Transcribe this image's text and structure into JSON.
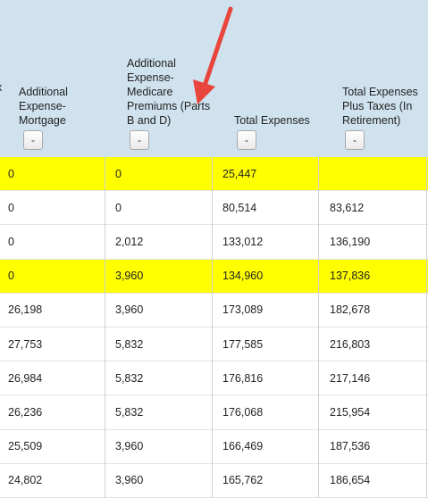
{
  "header": {
    "cut_left_label": "x",
    "columns": [
      {
        "label": "Additional Expense-Mortgage",
        "sort_label": "-"
      },
      {
        "label": "Additional Expense-Medicare Premiums (Parts B and D)",
        "sort_label": "-"
      },
      {
        "label": "Total Expenses",
        "sort_label": "-"
      },
      {
        "label": "Total Expenses Plus Taxes (In Retirement)",
        "sort_label": "-"
      }
    ]
  },
  "rows": [
    {
      "highlight": true,
      "cells": [
        "0",
        "0",
        "25,447",
        ""
      ]
    },
    {
      "highlight": false,
      "cells": [
        "0",
        "0",
        "80,514",
        "83,612"
      ]
    },
    {
      "highlight": false,
      "cells": [
        "0",
        "2,012",
        "133,012",
        "136,190"
      ]
    },
    {
      "highlight": true,
      "cells": [
        "0",
        "3,960",
        "134,960",
        "137,836"
      ]
    },
    {
      "highlight": false,
      "cells": [
        "26,198",
        "3,960",
        "173,089",
        "182,678"
      ]
    },
    {
      "highlight": false,
      "cells": [
        "27,753",
        "5,832",
        "177,585",
        "216,803"
      ]
    },
    {
      "highlight": false,
      "cells": [
        "26,984",
        "5,832",
        "176,816",
        "217,146"
      ]
    },
    {
      "highlight": false,
      "cells": [
        "26,236",
        "5,832",
        "176,068",
        "215,954"
      ]
    },
    {
      "highlight": false,
      "cells": [
        "25,509",
        "3,960",
        "166,469",
        "187,536"
      ]
    },
    {
      "highlight": false,
      "cells": [
        "24,802",
        "3,960",
        "165,762",
        "186,654"
      ]
    }
  ],
  "colors": {
    "header_bg": "#cfe2ee",
    "highlight": "#ffff00",
    "arrow": "#e8453c"
  },
  "annotation_icon": "red-arrow-icon"
}
